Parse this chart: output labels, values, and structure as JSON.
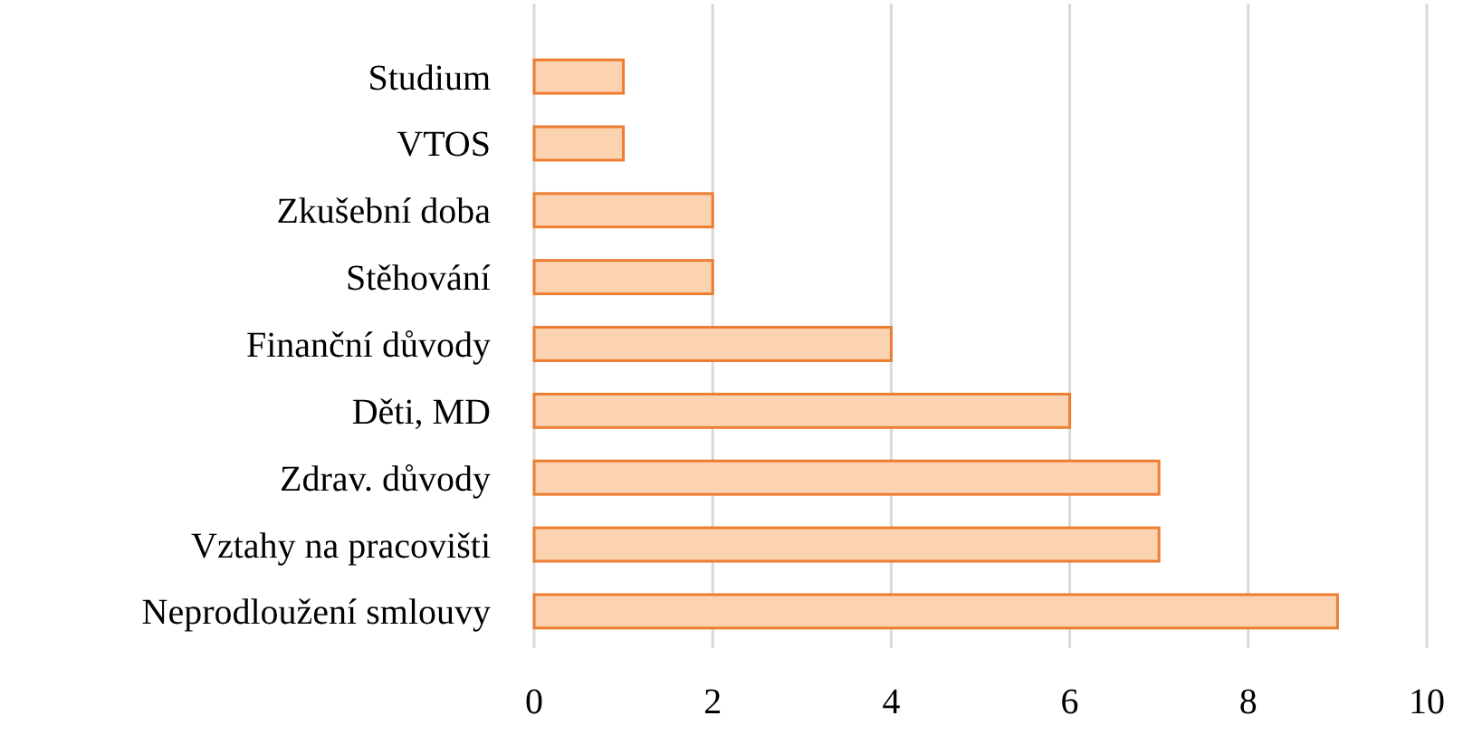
{
  "chart_data": {
    "type": "bar",
    "orientation": "horizontal",
    "categories": [
      "Studium",
      "VTOS",
      "Zkušební doba",
      "Stěhování",
      "Finanční důvody",
      "Děti, MD",
      "Zdrav. důvody",
      "Vztahy na pracovišti",
      "Neprodloužení smlouvy"
    ],
    "values": [
      1,
      1,
      2,
      2,
      4,
      6,
      7,
      7,
      9
    ],
    "color": "#fbd3b0",
    "xlim": [
      0,
      10
    ],
    "xticks": [
      0,
      2,
      4,
      6,
      8,
      10
    ],
    "grid": "x"
  }
}
